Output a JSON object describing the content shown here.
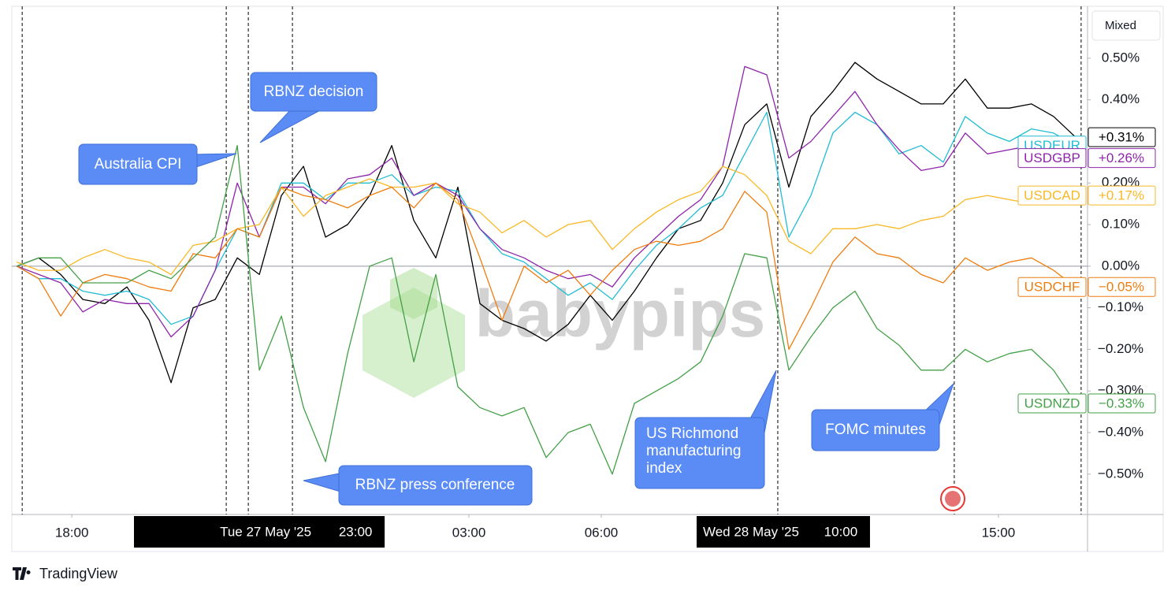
{
  "chart_data": {
    "type": "line",
    "mode": "Mixed",
    "watermark": "babypips",
    "footer": "TradingView",
    "x": [
      -7.25,
      -6.75,
      -6.25,
      -5.75,
      -5.25,
      -4.75,
      -4.25,
      -3.75,
      -3.25,
      -2.75,
      -2.25,
      -1.75,
      -1.25,
      -0.75,
      -0.25,
      0.25,
      0.75,
      1.25,
      1.75,
      2.25,
      2.75,
      3.25,
      3.75,
      4.25,
      4.75,
      5.25,
      5.75,
      6.25,
      6.75,
      7.25,
      7.75,
      8.25,
      8.75,
      9.25,
      9.75,
      10.25,
      10.75,
      11.25,
      11.75,
      12.25,
      12.75,
      13.25,
      13.75,
      14.25,
      14.75,
      15.25,
      15.75,
      16.25,
      16.75
    ],
    "xlim": [
      -7.36,
      17.02
    ],
    "xticks": [
      {
        "value": -6,
        "label": "18:00"
      },
      {
        "value": 3,
        "label": "03:00"
      },
      {
        "value": 6,
        "label": "06:00"
      },
      {
        "value": 15,
        "label": "15:00"
      }
    ],
    "ylim": [
      -0.597,
      0.621
    ],
    "yticks": [
      {
        "value": 0.5,
        "label": "0.50%"
      },
      {
        "value": 0.4,
        "label": "0.40%"
      },
      {
        "value": 0.3,
        "label": "0.30%"
      },
      {
        "value": 0.2,
        "label": "0.20%"
      },
      {
        "value": 0.1,
        "label": "0.10%"
      },
      {
        "value": 0,
        "label": "0.00%"
      },
      {
        "value": -0.1,
        "label": "−0.10%"
      },
      {
        "value": -0.2,
        "label": "−0.20%"
      },
      {
        "value": -0.3,
        "label": "−0.30%"
      },
      {
        "value": -0.4,
        "label": "−0.40%"
      },
      {
        "value": -0.5,
        "label": "−0.50%"
      }
    ],
    "zero_line": true,
    "event_lines": [
      -7.125,
      -2.5,
      -2,
      -1,
      10,
      14,
      16.875
    ],
    "x_flags": [
      {
        "x": -1,
        "date": "Tue 27 May '25",
        "time": "23:00"
      },
      {
        "x": 10,
        "date": "Wed 28 May '25",
        "time": "10:00"
      }
    ],
    "annotations": {
      "australia_cpi": "Australia CPI",
      "rbnz_decision": "RBNZ decision",
      "rbnz_press": "RBNZ press conference",
      "richmond": [
        "US Richmond",
        "manufacturing",
        "index"
      ],
      "fomc": "FOMC minutes"
    },
    "series": [
      {
        "name": null,
        "color": "#000000",
        "end_label": "+0.31%",
        "values": [
          0,
          0.02,
          -0.02,
          -0.08,
          -0.09,
          -0.05,
          -0.13,
          -0.28,
          -0.1,
          -0.08,
          0.02,
          -0.02,
          0.17,
          0.24,
          0.07,
          0.1,
          0.17,
          0.29,
          0.11,
          0.02,
          0.19,
          -0.09,
          -0.13,
          -0.15,
          -0.18,
          -0.14,
          -0.07,
          -0.13,
          -0.06,
          0.02,
          0.09,
          0.11,
          0.2,
          0.34,
          0.39,
          0.19,
          0.36,
          0.42,
          0.49,
          0.45,
          0.42,
          0.39,
          0.39,
          0.45,
          0.38,
          0.38,
          0.39,
          0.36,
          0.31
        ]
      },
      {
        "name": "USDEUR",
        "color": "#22bcd4",
        "values": [
          0,
          -0.03,
          -0.03,
          -0.06,
          -0.07,
          -0.06,
          -0.08,
          -0.14,
          -0.12,
          -0.01,
          0.09,
          0.07,
          0.2,
          0.2,
          0.16,
          0.2,
          0.2,
          0.22,
          0.17,
          0.19,
          0.18,
          0.09,
          0.03,
          0.01,
          -0.03,
          -0.07,
          -0.04,
          -0.08,
          -0.01,
          0.05,
          0.09,
          0.14,
          0.17,
          0.27,
          0.37,
          0.07,
          0.17,
          0.32,
          0.37,
          0.34,
          0.27,
          0.29,
          0.25,
          0.36,
          0.32,
          0.3,
          0.33,
          0.32,
          0.29
        ]
      },
      {
        "name": "USDGBP",
        "color": "#8e24aa",
        "end_label": "+0.26%",
        "values": [
          0,
          -0.02,
          -0.04,
          -0.11,
          -0.08,
          -0.09,
          -0.09,
          -0.17,
          -0.12,
          -0.01,
          0.2,
          0.07,
          0.19,
          0.19,
          0.15,
          0.21,
          0.22,
          0.26,
          0.17,
          0.2,
          0.17,
          0.09,
          0.04,
          0.02,
          -0.01,
          -0.03,
          -0.02,
          -0.05,
          0.02,
          0.07,
          0.12,
          0.16,
          0.24,
          0.48,
          0.46,
          0.26,
          0.3,
          0.36,
          0.42,
          0.34,
          0.28,
          0.23,
          0.24,
          0.32,
          0.27,
          0.28,
          0.29,
          0.28,
          0.26
        ]
      },
      {
        "name": "USDCAD",
        "color": "#f9b826",
        "end_label": "+0.17%",
        "values": [
          0.01,
          -0.01,
          -0.01,
          0.02,
          0.04,
          0.02,
          0.01,
          -0.02,
          0.05,
          0.06,
          0.09,
          0.1,
          0.19,
          0.12,
          0.17,
          0.19,
          0.21,
          0.19,
          0.19,
          0.2,
          0.15,
          0.13,
          0.08,
          0.11,
          0.07,
          0.1,
          0.11,
          0.04,
          0.09,
          0.13,
          0.16,
          0.18,
          0.24,
          0.22,
          0.17,
          0.06,
          0.03,
          0.09,
          0.09,
          0.1,
          0.09,
          0.11,
          0.12,
          0.16,
          0.17,
          0.16,
          0.15,
          0.17,
          0.17
        ]
      },
      {
        "name": "USDCHF",
        "color": "#ef7c0e",
        "end_label": "−0.05%",
        "values": [
          0,
          -0.03,
          -0.12,
          -0.04,
          -0.02,
          -0.03,
          -0.05,
          -0.06,
          0.03,
          0.02,
          0.09,
          0.07,
          0.19,
          0.17,
          0.16,
          0.14,
          0.17,
          0.19,
          0.14,
          0.2,
          0.16,
          0.02,
          -0.13,
          0,
          -0.04,
          -0.01,
          -0.07,
          -0.01,
          0.04,
          0.06,
          0.05,
          0.06,
          0.09,
          0.18,
          0.13,
          -0.2,
          -0.1,
          0.01,
          0.07,
          0.03,
          0.02,
          -0.02,
          -0.04,
          0.02,
          -0.01,
          0.01,
          0.02,
          -0.01,
          -0.05
        ]
      },
      {
        "name": "USDNZD",
        "color": "#43a047",
        "end_label": "−0.33%",
        "values": [
          0,
          0.02,
          0.02,
          -0.04,
          -0.04,
          -0.04,
          -0.01,
          -0.03,
          0.02,
          0.07,
          0.29,
          -0.25,
          -0.12,
          -0.34,
          -0.47,
          -0.21,
          0,
          0.02,
          -0.23,
          -0.02,
          -0.29,
          -0.34,
          -0.36,
          -0.34,
          -0.46,
          -0.4,
          -0.38,
          -0.5,
          -0.33,
          -0.3,
          -0.27,
          -0.23,
          -0.12,
          0.03,
          0.02,
          -0.25,
          -0.17,
          -0.1,
          -0.06,
          -0.15,
          -0.19,
          -0.25,
          -0.25,
          -0.2,
          -0.23,
          -0.21,
          -0.2,
          -0.25,
          -0.33
        ]
      }
    ]
  }
}
